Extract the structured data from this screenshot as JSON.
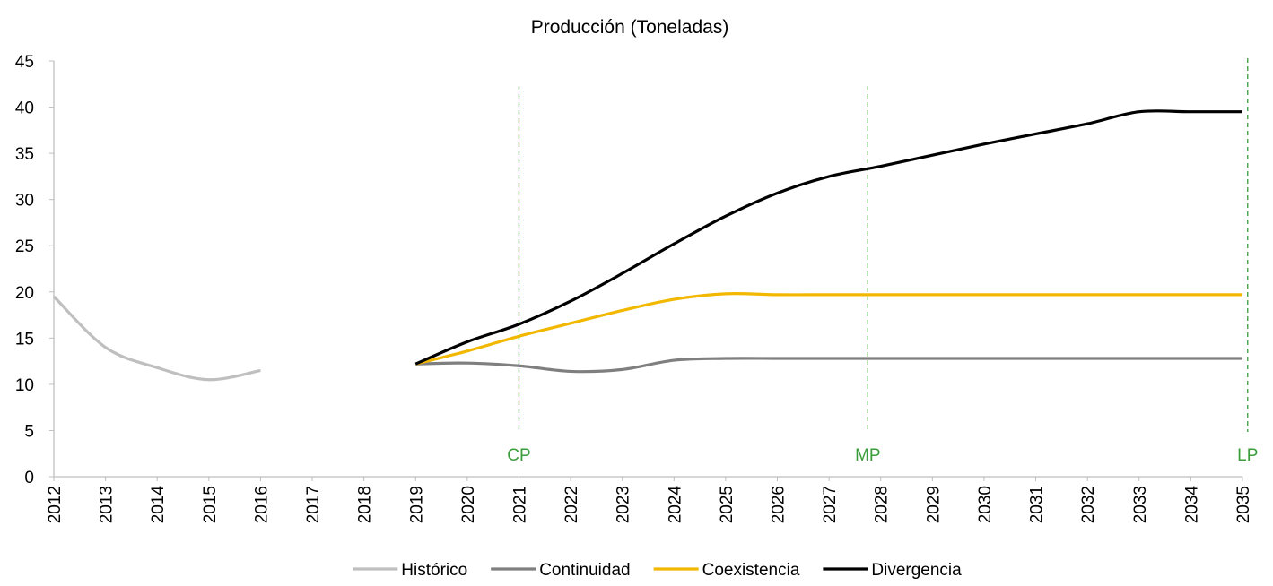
{
  "chart_data": {
    "type": "line",
    "title": "Producción (Toneladas)",
    "x": [
      2012,
      2013,
      2014,
      2015,
      2016,
      2017,
      2018,
      2019,
      2020,
      2021,
      2022,
      2023,
      2024,
      2025,
      2026,
      2027,
      2028,
      2029,
      2030,
      2031,
      2032,
      2033,
      2034,
      2035
    ],
    "xlim": [
      2012,
      2035
    ],
    "ylim": [
      0,
      45
    ],
    "yticks": [
      0,
      5,
      10,
      15,
      20,
      25,
      30,
      35,
      40,
      45
    ],
    "grid": false,
    "smooth": true,
    "legend": "bottom",
    "series": [
      {
        "name": "Histórico",
        "color": "#bfbfbf",
        "values": [
          19.5,
          14,
          11.8,
          10.5,
          11.5,
          null,
          null,
          null,
          null,
          null,
          null,
          null,
          null,
          null,
          null,
          null,
          null,
          null,
          null,
          null,
          null,
          null,
          null,
          null
        ]
      },
      {
        "name": "Continuidad",
        "color": "#7f7f7f",
        "values": [
          null,
          null,
          null,
          null,
          null,
          null,
          null,
          12.2,
          12.3,
          12.0,
          11.4,
          11.6,
          12.6,
          12.8,
          12.8,
          12.8,
          12.8,
          12.8,
          12.8,
          12.8,
          12.8,
          12.8,
          12.8,
          12.8
        ]
      },
      {
        "name": "Coexistencia",
        "color": "#f2b800",
        "values": [
          null,
          null,
          null,
          null,
          null,
          null,
          null,
          12.2,
          13.6,
          15.2,
          16.6,
          18.0,
          19.2,
          19.8,
          19.7,
          19.7,
          19.7,
          19.7,
          19.7,
          19.7,
          19.7,
          19.7,
          19.7,
          19.7
        ]
      },
      {
        "name": "Divergencia",
        "color": "#000000",
        "values": [
          null,
          null,
          null,
          null,
          null,
          null,
          null,
          12.2,
          14.6,
          16.5,
          19.0,
          22.0,
          25.2,
          28.2,
          30.7,
          32.5,
          33.6,
          34.8,
          36.0,
          37.1,
          38.2,
          39.5,
          39.5,
          39.5
        ]
      }
    ],
    "annotations": [
      {
        "label": "CP",
        "x": 2021,
        "color": "#3a9d3a"
      },
      {
        "label": "MP",
        "x": 2027.75,
        "color": "#3a9d3a"
      },
      {
        "label": "LP",
        "x": 2035.1,
        "color": "#3a9d3a"
      }
    ]
  }
}
